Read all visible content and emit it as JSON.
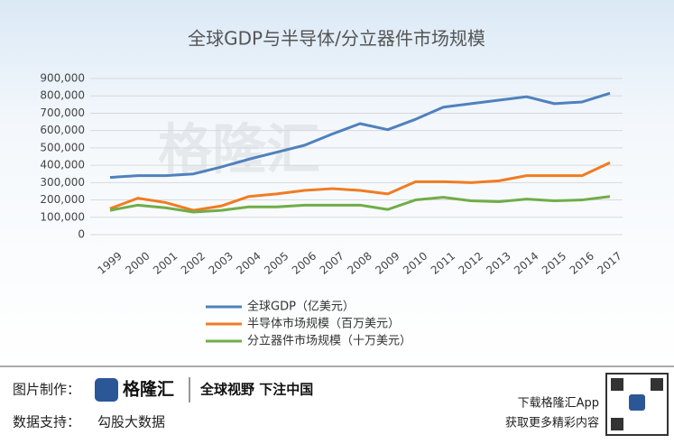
{
  "chart_data": {
    "type": "line",
    "title": "全球GDP与半导体/分立器件市场规模",
    "categories": [
      "1999",
      "2000",
      "2001",
      "2002",
      "2003",
      "2004",
      "2005",
      "2006",
      "2007",
      "2008",
      "2009",
      "2010",
      "2011",
      "2012",
      "2013",
      "2014",
      "2015",
      "2016",
      "2017"
    ],
    "series": [
      {
        "name": "全球GDP（亿美元）",
        "color": "#4f81bd",
        "values": [
          330000,
          340000,
          340000,
          350000,
          390000,
          435000,
          475000,
          515000,
          580000,
          640000,
          605000,
          665000,
          735000,
          755000,
          775000,
          795000,
          755000,
          765000,
          815000
        ]
      },
      {
        "name": "半导体市场规模（百万美元）",
        "color": "#f07c22",
        "values": [
          150000,
          210000,
          185000,
          140000,
          165000,
          220000,
          235000,
          255000,
          265000,
          255000,
          235000,
          305000,
          305000,
          300000,
          310000,
          340000,
          340000,
          340000,
          415000
        ]
      },
      {
        "name": "分立器件市场规模（十万美元）",
        "color": "#70ad47",
        "values": [
          140000,
          170000,
          155000,
          130000,
          140000,
          160000,
          160000,
          170000,
          170000,
          170000,
          145000,
          200000,
          215000,
          195000,
          190000,
          205000,
          195000,
          200000,
          220000
        ]
      }
    ],
    "ylim": [
      0,
      900000
    ],
    "yticks": [
      0,
      {
        "value": 100000,
        "label": "100,000"
      },
      {
        "value": 200000,
        "label": "200,000"
      },
      {
        "value": 300000,
        "label": "300,000"
      },
      {
        "value": 400000,
        "label": "400,000"
      },
      {
        "value": 500000,
        "label": "500,000"
      },
      {
        "value": 600000,
        "label": "600,000"
      },
      {
        "value": 700000,
        "label": "700,000"
      },
      {
        "value": 800000,
        "label": "800,000"
      },
      {
        "value": 900000,
        "label": "900,000"
      }
    ],
    "grid": true
  },
  "watermark": "格隆汇",
  "footer": {
    "made_by_label": "图片制作：",
    "logo": "格隆汇",
    "slogan": "全球视野 下注中国",
    "data_label": "数据支持：",
    "data_source": "勾股大数据",
    "app_line1": "下载格隆汇App",
    "app_line2": "获取更多精彩内容"
  }
}
